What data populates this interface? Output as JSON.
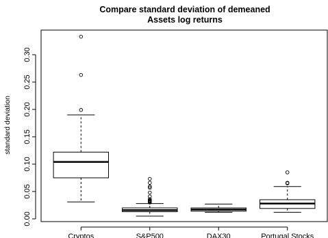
{
  "chart_data": {
    "type": "boxplot",
    "title": [
      "Compare standard deviation of demeaned",
      "Assets log returns"
    ],
    "xlabel": "",
    "ylabel": "standard deviation",
    "ylim": [
      -0.005,
      0.345
    ],
    "yticks": [
      0.0,
      0.05,
      0.1,
      0.15,
      0.2,
      0.25,
      0.3
    ],
    "ytick_labels": [
      "0.00",
      "0.05",
      "0.10",
      "0.15",
      "0.20",
      "0.25",
      "0.30"
    ],
    "grid": false,
    "categories": [
      "Cryptos",
      "S&P500",
      "DAX30",
      "Portugal Stocks"
    ],
    "boxes": [
      {
        "whisker_low": 0.031,
        "q1": 0.075,
        "median": 0.104,
        "q3": 0.122,
        "whisker_high": 0.19,
        "outliers": [
          0.199,
          0.263,
          0.333
        ]
      },
      {
        "whisker_low": 0.005,
        "q1": 0.013,
        "median": 0.016,
        "q3": 0.02,
        "whisker_high": 0.028,
        "outliers": [
          0.03,
          0.031,
          0.032,
          0.033,
          0.034,
          0.036,
          0.041,
          0.048,
          0.057,
          0.059,
          0.066,
          0.073
        ]
      },
      {
        "whisker_low": 0.012,
        "q1": 0.014,
        "median": 0.017,
        "q3": 0.02,
        "whisker_high": 0.027,
        "outliers": []
      },
      {
        "whisker_low": 0.012,
        "q1": 0.019,
        "median": 0.028,
        "q3": 0.035,
        "whisker_high": 0.059,
        "outliers": [
          0.065,
          0.066,
          0.085
        ]
      }
    ]
  }
}
